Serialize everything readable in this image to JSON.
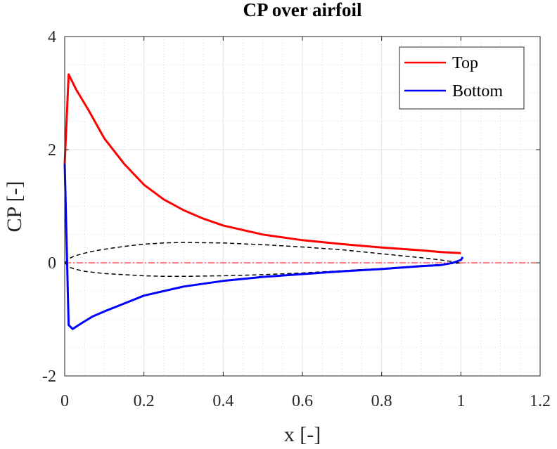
{
  "chart_data": {
    "type": "line",
    "title": "CP over airfoil",
    "xlabel": "x [-]",
    "ylabel": "CP [-]",
    "xlim": [
      0,
      1.2
    ],
    "ylim": [
      -2,
      4
    ],
    "xticks": [
      0,
      0.2,
      0.4,
      0.6,
      0.8,
      1,
      1.2
    ],
    "xtick_labels": [
      "0",
      "0.2",
      "0.4",
      "0.6",
      "0.8",
      "1",
      "1.2"
    ],
    "yticks": [
      -2,
      0,
      2,
      4
    ],
    "ytick_labels": [
      "-2",
      "0",
      "2",
      "4"
    ],
    "grid": true,
    "minor_grid": true,
    "legend_position": "top-right",
    "series": [
      {
        "name": "Top",
        "color": "#ff0000",
        "x": [
          0,
          0.01,
          0.03,
          0.06,
          0.1,
          0.15,
          0.2,
          0.25,
          0.3,
          0.35,
          0.4,
          0.5,
          0.6,
          0.7,
          0.8,
          0.9,
          0.95,
          1.0
        ],
        "y": [
          1.75,
          3.33,
          3.05,
          2.7,
          2.2,
          1.75,
          1.38,
          1.12,
          0.93,
          0.78,
          0.66,
          0.5,
          0.4,
          0.33,
          0.27,
          0.22,
          0.19,
          0.17
        ]
      },
      {
        "name": "Bottom",
        "color": "#0000ff",
        "x": [
          0,
          0.01,
          0.02,
          0.04,
          0.07,
          0.1,
          0.15,
          0.2,
          0.3,
          0.4,
          0.5,
          0.6,
          0.7,
          0.8,
          0.9,
          0.95,
          0.98,
          1.0,
          1.005
        ],
        "y": [
          1.75,
          -1.1,
          -1.17,
          -1.08,
          -0.95,
          -0.86,
          -0.72,
          -0.58,
          -0.42,
          -0.32,
          -0.25,
          -0.2,
          -0.15,
          -0.11,
          -0.06,
          -0.04,
          0.0,
          0.05,
          0.1
        ]
      },
      {
        "name": "",
        "style": "dashed",
        "color": "#000000",
        "x": [
          0,
          0.0125,
          0.025,
          0.05,
          0.075,
          0.1,
          0.15,
          0.2,
          0.25,
          0.3,
          0.4,
          0.5,
          0.6,
          0.7,
          0.8,
          0.9,
          0.95,
          1.0
        ],
        "y": [
          0,
          0.08,
          0.12,
          0.17,
          0.21,
          0.24,
          0.29,
          0.33,
          0.35,
          0.36,
          0.35,
          0.32,
          0.28,
          0.23,
          0.16,
          0.09,
          0.05,
          0.0
        ]
      },
      {
        "name": "",
        "style": "dashed",
        "color": "#000000",
        "x": [
          0,
          0.0125,
          0.025,
          0.05,
          0.075,
          0.1,
          0.15,
          0.2,
          0.25,
          0.3,
          0.4,
          0.5,
          0.6,
          0.7,
          0.8,
          0.9,
          0.95,
          1.0
        ],
        "y": [
          0,
          -0.08,
          -0.11,
          -0.15,
          -0.17,
          -0.19,
          -0.21,
          -0.23,
          -0.24,
          -0.24,
          -0.23,
          -0.21,
          -0.18,
          -0.14,
          -0.1,
          -0.05,
          -0.03,
          0.0
        ]
      },
      {
        "name": "",
        "style": "dash-dot",
        "color": "#ff0000",
        "x": [
          0,
          1.2
        ],
        "y": [
          0,
          0
        ]
      }
    ]
  }
}
